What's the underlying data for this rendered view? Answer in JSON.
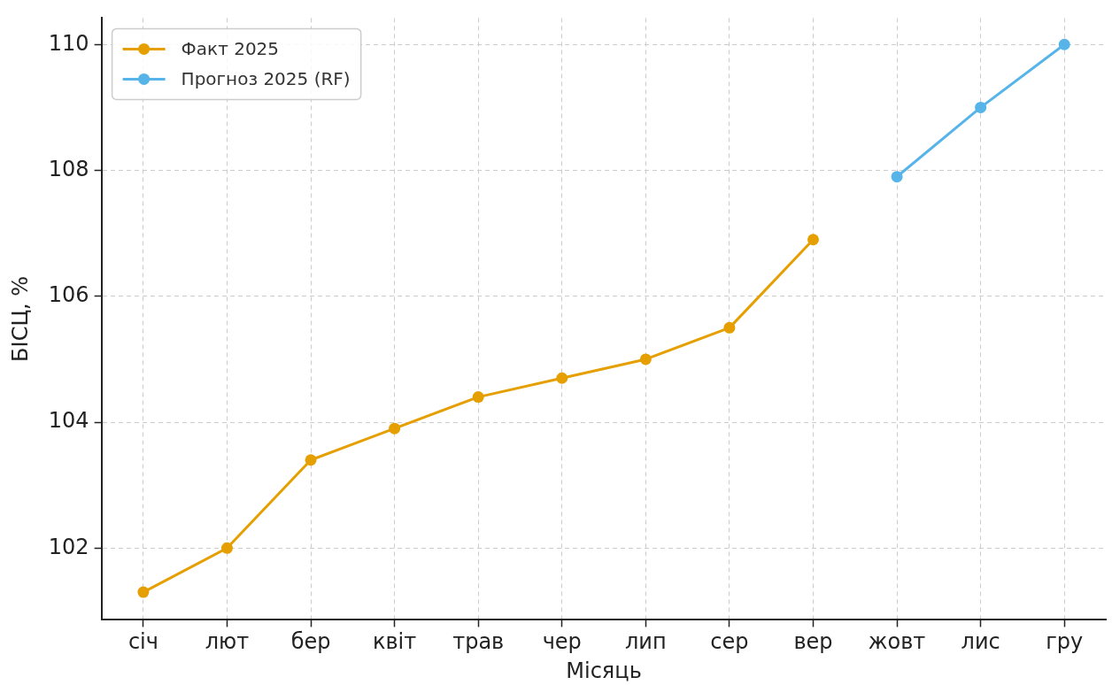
{
  "chart_data": {
    "type": "line",
    "xlabel": "Місяць",
    "ylabel": "БІСЦ, %",
    "categories": [
      "січ",
      "лют",
      "бер",
      "квіт",
      "трав",
      "чер",
      "лип",
      "сер",
      "вер",
      "жовт",
      "лис",
      "гру"
    ],
    "series": [
      {
        "name": "Факт 2025",
        "color": "#e69f00",
        "values": [
          101.3,
          102.0,
          103.4,
          103.9,
          104.4,
          104.7,
          105.0,
          105.5,
          106.9,
          null,
          null,
          null
        ]
      },
      {
        "name": "Прогноз 2025 (RF)",
        "color": "#56b4e9",
        "values": [
          null,
          null,
          null,
          null,
          null,
          null,
          null,
          null,
          null,
          107.9,
          109.0,
          110.0
        ]
      }
    ],
    "ylim": [
      100.86,
      110.42
    ],
    "yticks": [
      102,
      104,
      106,
      108,
      110
    ],
    "grid": true,
    "legend": "top left",
    "marker": "circle",
    "line_style": "solid"
  }
}
